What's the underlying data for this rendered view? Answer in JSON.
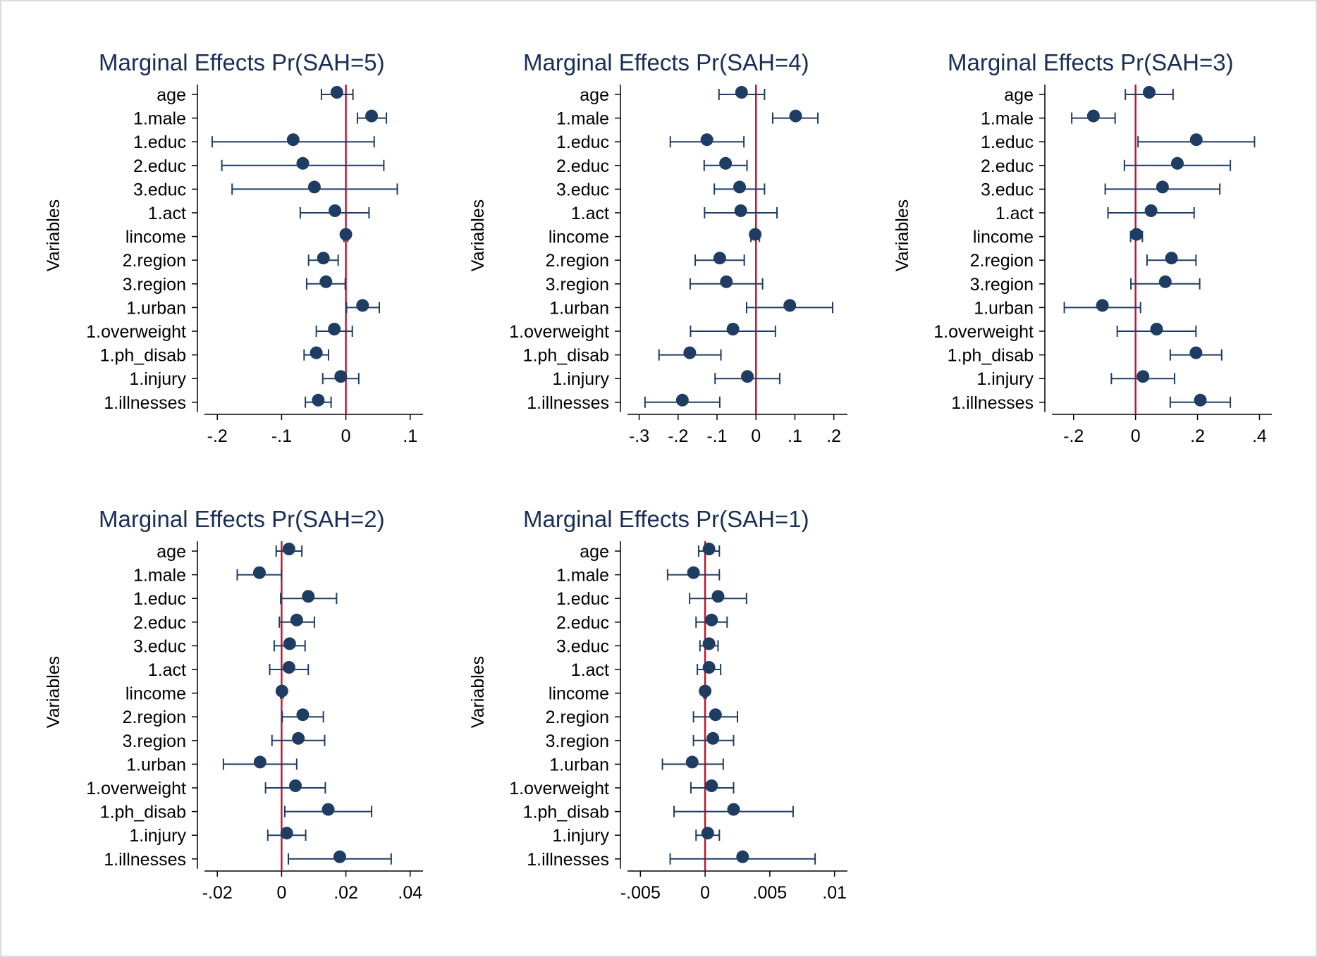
{
  "chart_data": [
    {
      "type": "scatter",
      "title": "Marginal Effects Pr(SAH=5)",
      "ylabel": "Variables",
      "categories": [
        "age",
        "1.male",
        "1.educ",
        "2.educ",
        "3.educ",
        "1.act",
        "lincome",
        "2.region",
        "3.region",
        "1.urban",
        "1.overweight",
        "1.ph_disab",
        "1.injury",
        "1.illnesses"
      ],
      "estimates": [
        -0.014,
        0.04,
        -0.082,
        -0.067,
        -0.049,
        -0.017,
        0.0,
        -0.035,
        -0.031,
        0.026,
        -0.018,
        -0.046,
        -0.008,
        -0.043
      ],
      "ci_low": [
        -0.038,
        0.018,
        -0.208,
        -0.193,
        -0.177,
        -0.071,
        -0.003,
        -0.058,
        -0.061,
        0.001,
        -0.046,
        -0.065,
        -0.036,
        -0.063
      ],
      "ci_high": [
        0.011,
        0.063,
        0.044,
        0.059,
        0.08,
        0.036,
        0.003,
        -0.012,
        -0.001,
        0.052,
        0.01,
        -0.027,
        0.02,
        -0.023
      ],
      "xticks": [
        -0.2,
        -0.1,
        0,
        0.1
      ],
      "xticklabels": [
        "-.2",
        "-.1",
        "0",
        ".1"
      ],
      "xlim": [
        -0.22,
        0.12
      ],
      "reference_line": 0
    },
    {
      "type": "scatter",
      "title": "Marginal Effects Pr(SAH=4)",
      "ylabel": "Variables",
      "categories": [
        "age",
        "1.male",
        "1.educ",
        "2.educ",
        "3.educ",
        "1.act",
        "lincome",
        "2.region",
        "3.region",
        "1.urban",
        "1.overweight",
        "1.ph_disab",
        "1.injury",
        "1.illnesses"
      ],
      "estimates": [
        -0.037,
        0.102,
        -0.126,
        -0.078,
        -0.042,
        -0.039,
        -0.002,
        -0.093,
        -0.076,
        0.087,
        -0.059,
        -0.17,
        -0.022,
        -0.189
      ],
      "ci_low": [
        -0.095,
        0.043,
        -0.22,
        -0.133,
        -0.107,
        -0.132,
        -0.013,
        -0.156,
        -0.169,
        -0.024,
        -0.168,
        -0.249,
        -0.105,
        -0.285
      ],
      "ci_high": [
        0.022,
        0.159,
        -0.031,
        -0.023,
        0.022,
        0.054,
        0.009,
        -0.03,
        0.017,
        0.197,
        0.05,
        -0.09,
        0.061,
        -0.093
      ],
      "xticks": [
        -0.3,
        -0.2,
        -0.1,
        0,
        0.1,
        0.2
      ],
      "xticklabels": [
        "-.3",
        "-.2",
        "-.1",
        "0",
        ".1",
        ".2"
      ],
      "xlim": [
        -0.33,
        0.235
      ],
      "reference_line": 0
    },
    {
      "type": "scatter",
      "title": "Marginal Effects Pr(SAH=3)",
      "ylabel": "Variables",
      "categories": [
        "age",
        "1.male",
        "1.educ",
        "2.educ",
        "3.educ",
        "1.act",
        "lincome",
        "2.region",
        "3.region",
        "1.urban",
        "1.overweight",
        "1.ph_disab",
        "1.injury",
        "1.illnesses"
      ],
      "estimates": [
        0.044,
        -0.136,
        0.196,
        0.135,
        0.087,
        0.05,
        0.003,
        0.116,
        0.096,
        -0.107,
        0.068,
        0.195,
        0.024,
        0.209
      ],
      "ci_low": [
        -0.033,
        -0.206,
        0.008,
        -0.036,
        -0.098,
        -0.089,
        -0.016,
        0.037,
        -0.015,
        -0.23,
        -0.059,
        0.112,
        -0.078,
        0.112
      ],
      "ci_high": [
        0.121,
        -0.066,
        0.384,
        0.306,
        0.272,
        0.189,
        0.022,
        0.195,
        0.207,
        0.016,
        0.195,
        0.278,
        0.126,
        0.306
      ],
      "xticks": [
        -0.2,
        0,
        0.2,
        0.4
      ],
      "xticklabels": [
        "-.2",
        "0",
        ".2",
        ".4"
      ],
      "xlim": [
        -0.27,
        0.44
      ],
      "reference_line": 0
    },
    {
      "type": "scatter",
      "title": "Marginal Effects Pr(SAH=2)",
      "ylabel": "Variables",
      "categories": [
        "age",
        "1.male",
        "1.educ",
        "2.educ",
        "3.educ",
        "1.act",
        "lincome",
        "2.region",
        "3.region",
        "1.urban",
        "1.overweight",
        "1.ph_disab",
        "1.injury",
        "1.illnesses"
      ],
      "estimates": [
        0.0023,
        -0.0069,
        0.0083,
        0.0047,
        0.0025,
        0.0023,
        0.0001,
        0.0066,
        0.0052,
        -0.0067,
        0.0043,
        0.0145,
        0.0016,
        0.0181
      ],
      "ci_low": [
        -0.0017,
        -0.0138,
        -0.0003,
        -0.0007,
        -0.0023,
        -0.0037,
        -0.0003,
        0.0002,
        -0.003,
        -0.0181,
        -0.005,
        0.001,
        -0.0043,
        0.0021
      ],
      "ci_high": [
        0.0063,
        0.0,
        0.0171,
        0.0102,
        0.0073,
        0.0083,
        0.0005,
        0.013,
        0.0134,
        0.0047,
        0.0136,
        0.028,
        0.0075,
        0.0341
      ],
      "xticks": [
        -0.02,
        0,
        0.02,
        0.04
      ],
      "xticklabels": [
        "-.02",
        "0",
        ".02",
        ".04"
      ],
      "xlim": [
        -0.024,
        0.044
      ],
      "reference_line": 0
    },
    {
      "type": "scatter",
      "title": "Marginal Effects Pr(SAH=1)",
      "ylabel": "Variables",
      "categories": [
        "age",
        "1.male",
        "1.educ",
        "2.educ",
        "3.educ",
        "1.act",
        "lincome",
        "2.region",
        "3.region",
        "1.urban",
        "1.overweight",
        "1.ph_disab",
        "1.injury",
        "1.illnesses"
      ],
      "estimates": [
        0.0003,
        -0.0009,
        0.001,
        0.0005,
        0.0003,
        0.0003,
        0.0,
        0.0008,
        0.0006,
        -0.001,
        0.0005,
        0.0022,
        0.0002,
        0.0029
      ],
      "ci_low": [
        -0.0005,
        -0.0029,
        -0.0012,
        -0.0007,
        -0.0004,
        -0.0006,
        -0.0001,
        -0.0009,
        -0.0009,
        -0.0033,
        -0.0011,
        -0.0024,
        -0.0007,
        -0.0027
      ],
      "ci_high": [
        0.0011,
        0.0011,
        0.0032,
        0.0017,
        0.001,
        0.0012,
        0.0001,
        0.0025,
        0.0022,
        0.0014,
        0.0022,
        0.0068,
        0.0011,
        0.0085
      ],
      "xticks": [
        -0.005,
        0,
        0.005,
        0.01
      ],
      "xticklabels": [
        "-.005",
        "0",
        ".005",
        ".01"
      ],
      "xlim": [
        -0.006,
        0.011
      ],
      "reference_line": 0
    }
  ],
  "colors": {
    "marker": "#1f3d63",
    "ci_line": "#1f3d63",
    "reference_line": "#c0132c",
    "title": "#1a2f57",
    "background": "#ffffff",
    "frame": "#dcdcdc"
  }
}
